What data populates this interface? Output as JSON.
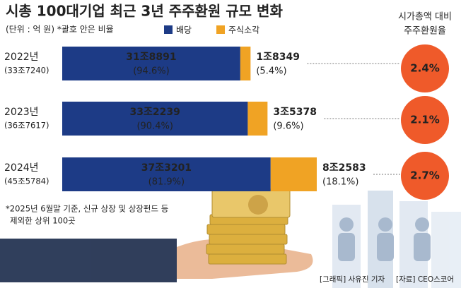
{
  "chart_data": {
    "type": "stacked-bar-horizontal",
    "title": "시총 100대기업 최근 3년 주주환원 규모 변화",
    "subtitle": "(단위 : 억 원) *괄호 안은 비율",
    "categories": [
      "2022년",
      "2023년",
      "2024년"
    ],
    "totals": [
      337240,
      367617,
      455784
    ],
    "total_labels": [
      "(33조7240)",
      "(36조7617)",
      "(45조5784)"
    ],
    "series": [
      {
        "name": "배당",
        "color": "#1d3b86",
        "values": [
          318891,
          332239,
          373201
        ],
        "value_labels": [
          "31조8891",
          "33조2239",
          "37조3201"
        ],
        "shares": [
          94.6,
          90.4,
          81.9
        ],
        "share_labels": [
          "(94.6%)",
          "(90.4%)",
          "(81.9%)"
        ]
      },
      {
        "name": "주식소각",
        "color": "#f0a324",
        "values": [
          18349,
          35378,
          82583
        ],
        "value_labels": [
          "1조8349",
          "3조5378",
          "8조2583"
        ],
        "shares": [
          5.4,
          9.6,
          18.1
        ],
        "share_labels": [
          "(5.4%)",
          "(9.6%)",
          "(18.1%)"
        ]
      }
    ],
    "ratio": {
      "title": [
        "시가총액 대비",
        "주주환원율"
      ],
      "color": "#ef5a2a",
      "values": [
        2.4,
        2.1,
        2.7
      ],
      "value_labels": [
        "2.4%",
        "2.1%",
        "2.7%"
      ]
    },
    "footnote": [
      "*2025년 6월말 기준, 신규 상장 및 상장펀드 등",
      "제외한 상위 100곳"
    ],
    "credits": [
      "[그래픽] 사유진 기자",
      "[자료] CEO스코어"
    ]
  }
}
